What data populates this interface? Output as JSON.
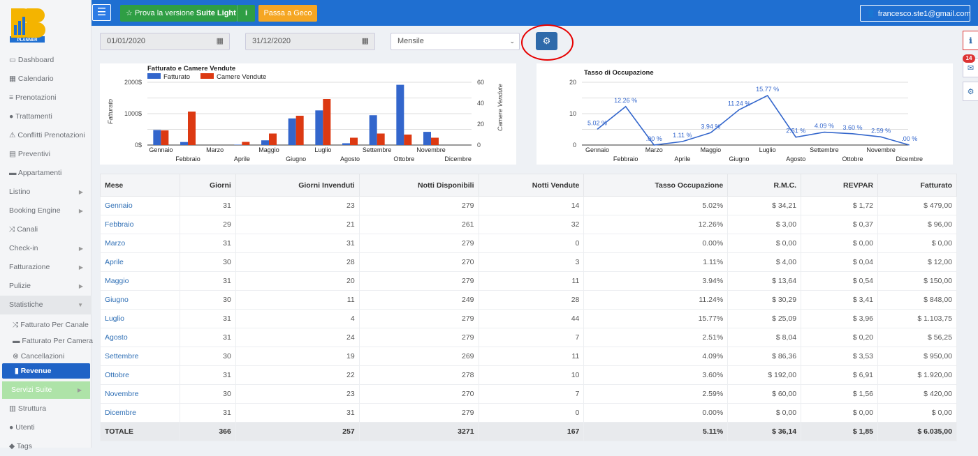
{
  "brand": {
    "logo_text": "PLANNER"
  },
  "sidebar": {
    "items": [
      {
        "icon": "monitor-icon",
        "label": "Dashboard"
      },
      {
        "icon": "calendar-icon",
        "label": "Calendario"
      },
      {
        "icon": "list-icon",
        "label": "Prenotazioni"
      },
      {
        "icon": "apple-icon",
        "label": "Trattamenti"
      },
      {
        "icon": "warning-icon",
        "label": "Conflitti Prenotazioni"
      },
      {
        "icon": "document-icon",
        "label": "Preventivi"
      },
      {
        "icon": "bed-icon",
        "label": "Appartamenti"
      },
      {
        "icon": "",
        "label": "Listino"
      },
      {
        "icon": "",
        "label": "Booking Engine"
      },
      {
        "icon": "shuffle-icon",
        "label": "Canali"
      },
      {
        "icon": "",
        "label": "Check-in"
      },
      {
        "icon": "",
        "label": "Fatturazione"
      },
      {
        "icon": "",
        "label": "Pulizie"
      },
      {
        "icon": "",
        "label": "Statistiche"
      }
    ],
    "sub": [
      {
        "icon": "shuffle-icon",
        "label": "Fatturato Per Canale"
      },
      {
        "icon": "bed-icon",
        "label": "Fatturato Per Camera"
      },
      {
        "icon": "cancel-icon",
        "label": "Cancellazioni"
      },
      {
        "icon": "bar-chart-icon",
        "label": "Revenue"
      }
    ],
    "bottom": [
      {
        "icon": "",
        "label": "Servizi Suite"
      },
      {
        "icon": "building-icon",
        "label": "Struttura"
      },
      {
        "icon": "user-icon",
        "label": "Utenti"
      },
      {
        "icon": "tags-icon",
        "label": "Tags"
      }
    ]
  },
  "topbar": {
    "trial_prefix": "Prova la versione ",
    "trial_bold": "Suite Light",
    "info": "i",
    "geco": "Passa a Geco",
    "user": "francesco.ste1@gmail.com"
  },
  "filters": {
    "start": "01/01/2020",
    "end": "31/12/2020",
    "period": "Mensile"
  },
  "right_badge": "14",
  "chart_data": [
    {
      "type": "bar",
      "title": "Fatturato e Camere Vendute",
      "ylabel": "Fatturato",
      "y2label": "Camere Vendute",
      "categories": [
        "Gennaio",
        "Febbraio",
        "Marzo",
        "Aprile",
        "Maggio",
        "Giugno",
        "Luglio",
        "Agosto",
        "Settembre",
        "Ottobre",
        "Novembre",
        "Dicembre"
      ],
      "series": [
        {
          "name": "Fatturato",
          "color": "#3366cc",
          "axis": "left",
          "values": [
            479,
            96,
            0,
            12,
            150,
            848,
            1103.75,
            56.25,
            950,
            1920,
            420,
            0
          ]
        },
        {
          "name": "Camere Vendute",
          "color": "#dc3912",
          "axis": "right",
          "values": [
            14,
            32,
            0,
            3,
            11,
            28,
            44,
            7,
            11,
            10,
            7,
            0
          ]
        }
      ],
      "yticks": [
        "0$",
        "1000$",
        "2000$"
      ],
      "y2ticks": [
        "0",
        "20",
        "40",
        "60"
      ],
      "ylim": [
        0,
        2000
      ],
      "y2lim": [
        0,
        60
      ]
    },
    {
      "type": "line",
      "title": "Tasso di Occupazione",
      "categories": [
        "Gennaio",
        "Febbraio",
        "Marzo",
        "Aprile",
        "Maggio",
        "Giugno",
        "Luglio",
        "Agosto",
        "Settembre",
        "Ottobre",
        "Novembre",
        "Dicembre"
      ],
      "values": [
        5.02,
        12.26,
        0,
        1.11,
        3.94,
        11.24,
        15.77,
        2.51,
        4.09,
        3.6,
        2.59,
        0
      ],
      "labels": [
        "5.02 %",
        "12.26 %",
        ".00 %",
        "1.11 %",
        "3.94 %",
        "11.24 %",
        "15.77 %",
        "2.51 %",
        "4.09 %",
        "3.60 %",
        "2.59 %",
        ".00 %"
      ],
      "yticks": [
        "0",
        "10",
        "20"
      ],
      "ylim": [
        0,
        20
      ],
      "color": "#3366cc"
    }
  ],
  "table": {
    "headers": [
      "Mese",
      "Giorni",
      "Giorni Invenduti",
      "Notti Disponibili",
      "Notti Vendute",
      "Tasso Occupazione",
      "R.M.C.",
      "REVPAR",
      "Fatturato"
    ],
    "rows": [
      [
        "Gennaio",
        "31",
        "23",
        "279",
        "14",
        "5.02%",
        "$ 34,21",
        "$ 1,72",
        "$ 479,00"
      ],
      [
        "Febbraio",
        "29",
        "21",
        "261",
        "32",
        "12.26%",
        "$ 3,00",
        "$ 0,37",
        "$ 96,00"
      ],
      [
        "Marzo",
        "31",
        "31",
        "279",
        "0",
        "0.00%",
        "$ 0,00",
        "$ 0,00",
        "$ 0,00"
      ],
      [
        "Aprile",
        "30",
        "28",
        "270",
        "3",
        "1.11%",
        "$ 4,00",
        "$ 0,04",
        "$ 12,00"
      ],
      [
        "Maggio",
        "31",
        "20",
        "279",
        "11",
        "3.94%",
        "$ 13,64",
        "$ 0,54",
        "$ 150,00"
      ],
      [
        "Giugno",
        "30",
        "11",
        "249",
        "28",
        "11.24%",
        "$ 30,29",
        "$ 3,41",
        "$ 848,00"
      ],
      [
        "Luglio",
        "31",
        "4",
        "279",
        "44",
        "15.77%",
        "$ 25,09",
        "$ 3,96",
        "$ 1.103,75"
      ],
      [
        "Agosto",
        "31",
        "24",
        "279",
        "7",
        "2.51%",
        "$ 8,04",
        "$ 0,20",
        "$ 56,25"
      ],
      [
        "Settembre",
        "30",
        "19",
        "269",
        "11",
        "4.09%",
        "$ 86,36",
        "$ 3,53",
        "$ 950,00"
      ],
      [
        "Ottobre",
        "31",
        "22",
        "278",
        "10",
        "3.60%",
        "$ 192,00",
        "$ 6,91",
        "$ 1.920,00"
      ],
      [
        "Novembre",
        "30",
        "23",
        "270",
        "7",
        "2.59%",
        "$ 60,00",
        "$ 1,56",
        "$ 420,00"
      ],
      [
        "Dicembre",
        "31",
        "31",
        "279",
        "0",
        "0.00%",
        "$ 0,00",
        "$ 0,00",
        "$ 0,00"
      ]
    ],
    "total": [
      "TOTALE",
      "366",
      "257",
      "3271",
      "167",
      "5.11%",
      "$ 36,14",
      "$ 1,85",
      "$ 6.035,00"
    ]
  }
}
